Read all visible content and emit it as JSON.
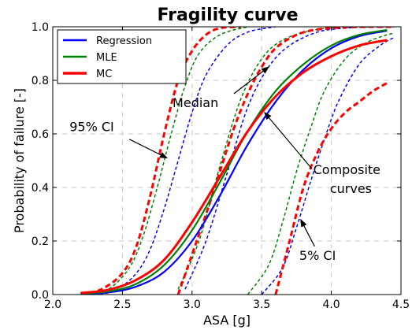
{
  "chart_data": {
    "type": "line",
    "title": "Fragility curve",
    "xlabel": "ASA [g]",
    "ylabel": "Probability of failure [-]",
    "xlim": [
      2.0,
      4.5
    ],
    "ylim": [
      0.0,
      1.0
    ],
    "xticks": [
      "2.0",
      "2.5",
      "3.0",
      "3.5",
      "4.0",
      "4.5"
    ],
    "yticks": [
      "0.0",
      "0.2",
      "0.4",
      "0.6",
      "0.8",
      "1.0"
    ],
    "grid": true,
    "legend": {
      "position": "top-left",
      "entries": [
        {
          "name": "Regression",
          "color": "#0000ff"
        },
        {
          "name": "MLE",
          "color": "#008000"
        },
        {
          "name": "MC",
          "color": "#ff0000"
        }
      ]
    },
    "series": [
      {
        "name": "Regression",
        "group": "median",
        "color": "#0000ff",
        "style": "solid",
        "x": [
          2.2,
          2.4,
          2.6,
          2.8,
          3.0,
          3.2,
          3.4,
          3.6,
          3.8,
          4.0,
          4.2,
          4.4
        ],
        "y": [
          0.002,
          0.008,
          0.03,
          0.085,
          0.2,
          0.37,
          0.56,
          0.72,
          0.84,
          0.92,
          0.965,
          0.985
        ]
      },
      {
        "name": "MLE",
        "group": "median",
        "color": "#008000",
        "style": "solid",
        "x": [
          2.2,
          2.4,
          2.6,
          2.8,
          3.0,
          3.2,
          3.4,
          3.6,
          3.8,
          4.0,
          4.2,
          4.4
        ],
        "y": [
          0.004,
          0.012,
          0.04,
          0.11,
          0.24,
          0.42,
          0.61,
          0.76,
          0.86,
          0.93,
          0.97,
          0.988
        ]
      },
      {
        "name": "MC",
        "group": "median",
        "color": "#ff0000",
        "style": "solid",
        "x": [
          2.2,
          2.4,
          2.6,
          2.8,
          3.0,
          3.2,
          3.4,
          3.6,
          3.8,
          4.0,
          4.2,
          4.4
        ],
        "y": [
          0.006,
          0.018,
          0.055,
          0.13,
          0.27,
          0.44,
          0.61,
          0.74,
          0.83,
          0.89,
          0.93,
          0.95
        ]
      },
      {
        "name": "Regression",
        "group": "95% CI",
        "color": "#0000ff",
        "style": "dashed",
        "x": [
          2.3,
          2.45,
          2.6,
          2.7,
          2.8,
          2.9,
          3.0,
          3.1,
          3.25,
          3.4,
          3.6
        ],
        "y": [
          0.0,
          0.015,
          0.08,
          0.17,
          0.32,
          0.5,
          0.68,
          0.82,
          0.93,
          0.98,
          1.0
        ]
      },
      {
        "name": "MLE",
        "group": "95% CI",
        "color": "#008000",
        "style": "dashed",
        "x": [
          2.25,
          2.4,
          2.55,
          2.65,
          2.75,
          2.85,
          2.95,
          3.05,
          3.2,
          3.4
        ],
        "y": [
          0.0,
          0.02,
          0.1,
          0.22,
          0.4,
          0.6,
          0.78,
          0.9,
          0.97,
          1.0
        ]
      },
      {
        "name": "MC",
        "group": "95% CI",
        "color": "#ff0000",
        "style": "dashed",
        "x": [
          2.2,
          2.35,
          2.5,
          2.6,
          2.7,
          2.8,
          2.9,
          3.0,
          3.1,
          3.2,
          3.35
        ],
        "y": [
          0.0,
          0.02,
          0.08,
          0.18,
          0.37,
          0.6,
          0.8,
          0.91,
          0.97,
          0.995,
          1.0
        ]
      },
      {
        "name": "Regression",
        "group": "median-band",
        "color": "#0000ff",
        "style": "dashed",
        "x": [
          2.95,
          3.1,
          3.25,
          3.4,
          3.55,
          3.7,
          3.9,
          4.1,
          4.3,
          4.45
        ],
        "y": [
          0.02,
          0.2,
          0.45,
          0.7,
          0.85,
          0.93,
          0.98,
          0.995,
          1.0,
          1.0
        ]
      },
      {
        "name": "MLE",
        "group": "median-band",
        "color": "#008000",
        "style": "dashed",
        "x": [
          2.9,
          3.05,
          3.2,
          3.35,
          3.5,
          3.65,
          3.85,
          4.05,
          4.25,
          4.45
        ],
        "y": [
          0.02,
          0.2,
          0.48,
          0.73,
          0.88,
          0.95,
          0.985,
          0.998,
          1.0,
          1.0
        ]
      },
      {
        "name": "MC",
        "group": "median-band",
        "color": "#ff0000",
        "style": "dashed",
        "x": [
          2.9,
          3.0,
          3.1,
          3.2,
          3.3,
          3.4,
          3.5,
          3.6,
          3.75,
          3.9,
          4.1,
          4.3,
          4.45
        ],
        "y": [
          0.0,
          0.15,
          0.3,
          0.46,
          0.62,
          0.75,
          0.85,
          0.92,
          0.97,
          0.99,
          0.998,
          1.0,
          1.0
        ]
      },
      {
        "name": "Regression",
        "group": "5% CI",
        "color": "#0000ff",
        "style": "dashed",
        "x": [
          3.5,
          3.65,
          3.75,
          3.85,
          3.95,
          4.05,
          4.2,
          4.35,
          4.45
        ],
        "y": [
          0.0,
          0.1,
          0.25,
          0.42,
          0.58,
          0.72,
          0.86,
          0.93,
          0.96
        ]
      },
      {
        "name": "MLE",
        "group": "5% CI",
        "color": "#008000",
        "style": "dashed",
        "x": [
          3.4,
          3.55,
          3.65,
          3.75,
          3.85,
          3.95,
          4.1,
          4.25,
          4.4,
          4.45
        ],
        "y": [
          0.0,
          0.11,
          0.27,
          0.46,
          0.62,
          0.76,
          0.88,
          0.94,
          0.97,
          0.975
        ]
      },
      {
        "name": "MC",
        "group": "5% CI",
        "color": "#ff0000",
        "style": "dashed",
        "x": [
          3.6,
          3.7,
          3.8,
          3.9,
          4.0,
          4.1,
          4.2,
          4.3,
          4.4
        ],
        "y": [
          0.0,
          0.2,
          0.4,
          0.53,
          0.62,
          0.68,
          0.72,
          0.76,
          0.79
        ]
      }
    ],
    "annotations": [
      {
        "text": "95% CI",
        "text_x": 2.12,
        "text_y": 0.61,
        "arrow_to_x": 2.82,
        "arrow_to_y": 0.51,
        "arrow_from_x": 2.55,
        "arrow_from_y": 0.58
      },
      {
        "text": "Median",
        "text_x": 2.86,
        "text_y": 0.7,
        "arrow_to_x": 3.55,
        "arrow_to_y": 0.85,
        "arrow_from_x": 3.3,
        "arrow_from_y": 0.75
      },
      {
        "text": "Composite",
        "text_x": 3.87,
        "text_y": 0.45,
        "arrow_to_x": 3.52,
        "arrow_to_y": 0.68,
        "arrow_from_x": 3.86,
        "arrow_from_y": 0.47
      },
      {
        "text": "curves",
        "text_x": 3.99,
        "text_y": 0.38
      },
      {
        "text": "5% CI",
        "text_x": 3.77,
        "text_y": 0.13,
        "arrow_to_x": 3.78,
        "arrow_to_y": 0.28,
        "arrow_from_x": 3.88,
        "arrow_from_y": 0.18
      }
    ]
  }
}
